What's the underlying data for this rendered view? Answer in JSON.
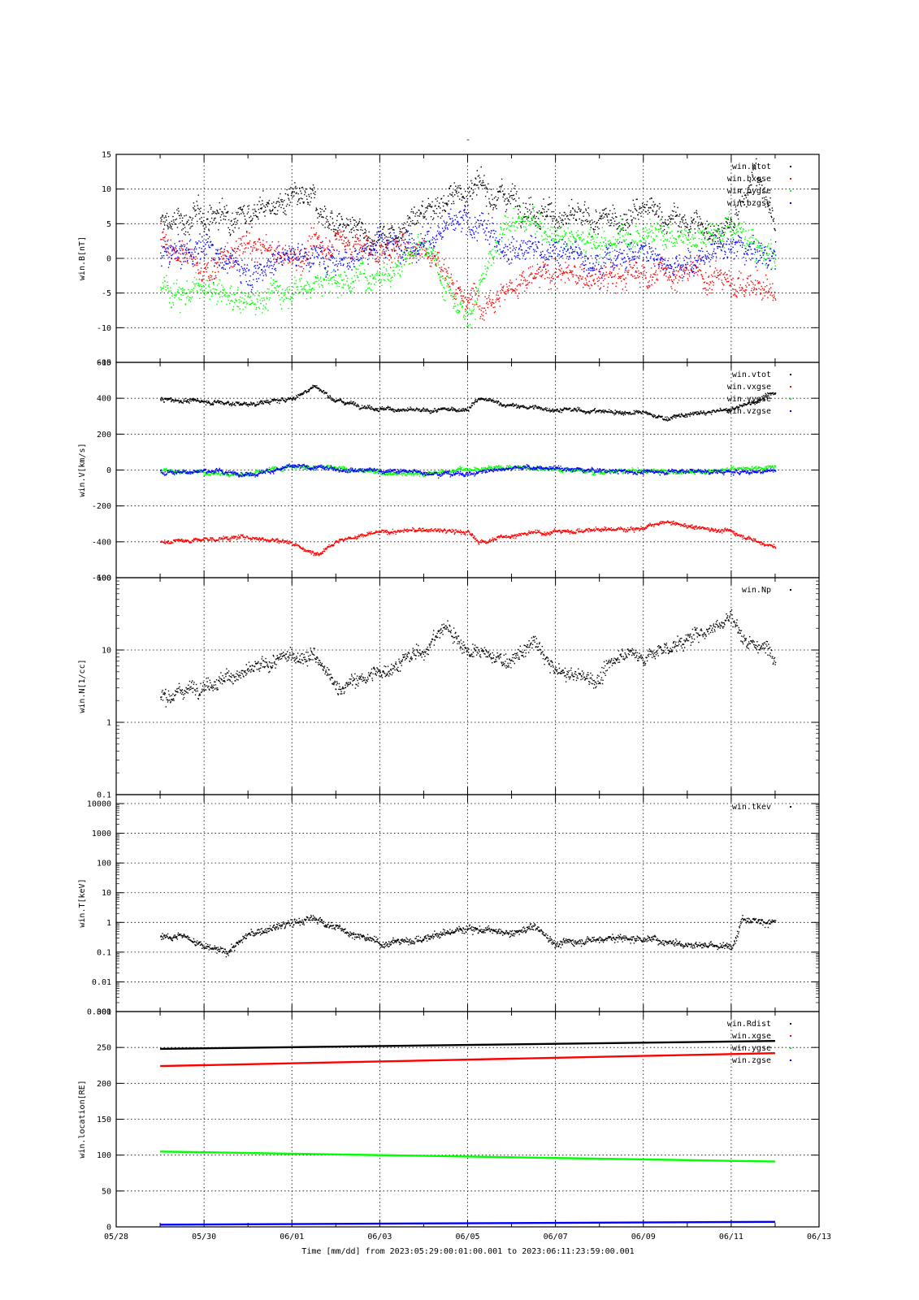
{
  "page_title": "-",
  "xaxis": {
    "xlabel": "Time [mm/dd]  from 2023:05:29:00:01:00.001  to  2023:06:11:23:59:00.001",
    "range": [
      "2023-05-28",
      "2023-06-13"
    ],
    "tick_labels": [
      "05/28",
      "05/30",
      "06/01",
      "06/03",
      "06/05",
      "06/07",
      "06/09",
      "06/11",
      "06/13"
    ],
    "data_start": "2023-05-29T00:01:00",
    "data_end": "2023-06-11T23:59:00"
  },
  "chart_data": [
    {
      "type": "scatter",
      "ylabel": "win.B[nT]",
      "ylim": [
        -15,
        15
      ],
      "yscale": "linear",
      "ytick_labels": [
        "-15",
        "-10",
        "-5",
        "0",
        "5",
        "10",
        "15"
      ],
      "grid": true,
      "legend": "top-right",
      "series": [
        {
          "name": "win.btot",
          "color": "#000000",
          "dates": [
            "05/29",
            "05/30",
            "05/31",
            "06/01",
            "06/01 12h",
            "06/02",
            "06/03",
            "06/04",
            "06/05",
            "06/06",
            "06/07",
            "06/08",
            "06/09",
            "06/10",
            "06/11",
            "06/11 12h",
            "06/12"
          ],
          "values": [
            5,
            6,
            7,
            8,
            8,
            5,
            3,
            7,
            10,
            9,
            6,
            5,
            7,
            5,
            4,
            13,
            5
          ]
        },
        {
          "name": "win.bxgse",
          "color": "#ff0000",
          "dates": [
            "05/29",
            "05/30",
            "05/31",
            "06/01",
            "06/02",
            "06/03",
            "06/04",
            "06/05",
            "06/06",
            "06/07",
            "06/08",
            "06/09",
            "06/10",
            "06/11",
            "06/12"
          ],
          "values": [
            3,
            -2,
            2,
            0,
            3,
            1,
            2,
            -6,
            -4,
            -2,
            -3,
            -2,
            -2,
            -3,
            -5
          ]
        },
        {
          "name": "win.bygse",
          "color": "#00ff00",
          "dates": [
            "05/29",
            "05/30",
            "05/31",
            "06/01",
            "06/02",
            "06/03",
            "06/04",
            "06/05",
            "06/06",
            "06/07",
            "06/08",
            "06/09",
            "06/10",
            "06/11",
            "06/12"
          ],
          "values": [
            -4,
            -5,
            -6,
            -4,
            -3,
            -2,
            2,
            -8,
            6,
            4,
            2,
            4,
            3,
            5,
            0
          ]
        },
        {
          "name": "win.bzgse",
          "color": "#0000ff",
          "dates": [
            "05/29",
            "05/30",
            "05/31",
            "06/01",
            "06/02",
            "06/03",
            "06/04",
            "06/05",
            "06/06",
            "06/07",
            "06/08",
            "06/09",
            "06/10",
            "06/11",
            "06/12"
          ],
          "values": [
            0,
            2,
            -2,
            1,
            0,
            2,
            3,
            5,
            2,
            1,
            0,
            1,
            -1,
            2,
            0
          ]
        }
      ]
    },
    {
      "type": "scatter",
      "ylabel": "win.V[km/s]",
      "ylim": [
        -600,
        600
      ],
      "yscale": "linear",
      "ytick_labels": [
        "-600",
        "-400",
        "-200",
        "0",
        "200",
        "400",
        "600"
      ],
      "grid": true,
      "legend": "top-right",
      "series": [
        {
          "name": "win.vtot",
          "color": "#000000",
          "dates": [
            "05/29",
            "05/30",
            "05/31",
            "06/01",
            "06/01 12h",
            "06/02",
            "06/03",
            "06/04",
            "06/05",
            "06/05 06h",
            "06/06",
            "06/07",
            "06/08",
            "06/09",
            "06/09 12h",
            "06/10",
            "06/11",
            "06/12"
          ],
          "values": [
            395,
            385,
            370,
            400,
            470,
            390,
            345,
            330,
            345,
            400,
            360,
            340,
            330,
            320,
            290,
            310,
            340,
            430
          ]
        },
        {
          "name": "win.vxgse",
          "color": "#ff0000",
          "dates": [
            "05/29",
            "05/30",
            "05/31",
            "06/01",
            "06/01 12h",
            "06/02",
            "06/03",
            "06/04",
            "06/05",
            "06/05 06h",
            "06/06",
            "06/07",
            "06/08",
            "06/09",
            "06/09 12h",
            "06/10",
            "06/11",
            "06/12"
          ],
          "values": [
            -395,
            -385,
            -370,
            -400,
            -470,
            -390,
            -345,
            -330,
            -345,
            -400,
            -360,
            -340,
            -330,
            -320,
            -290,
            -310,
            -340,
            -430
          ]
        },
        {
          "name": "win.vygse",
          "color": "#00ff00",
          "dates": [
            "05/29",
            "05/30",
            "05/31",
            "06/01",
            "06/02",
            "06/03",
            "06/04",
            "06/05",
            "06/06",
            "06/07",
            "06/08",
            "06/09",
            "06/10",
            "06/11",
            "06/12"
          ],
          "values": [
            0,
            -10,
            -20,
            30,
            10,
            -10,
            -20,
            10,
            20,
            10,
            -10,
            0,
            -10,
            10,
            20
          ]
        },
        {
          "name": "win.vzgse",
          "color": "#0000ff",
          "dates": [
            "05/29",
            "05/30",
            "05/31",
            "06/01",
            "06/02",
            "06/03",
            "06/04",
            "06/05",
            "06/06",
            "06/07",
            "06/08",
            "06/09",
            "06/10",
            "06/11",
            "06/12"
          ],
          "values": [
            -10,
            0,
            -20,
            20,
            10,
            0,
            -10,
            -20,
            20,
            10,
            0,
            -10,
            0,
            -10,
            0
          ]
        }
      ]
    },
    {
      "type": "scatter",
      "ylabel": "win.N[1/cc]",
      "ylim": [
        0.1,
        100
      ],
      "yscale": "log",
      "ytick_labels": [
        "0.1",
        "1",
        "10",
        "100"
      ],
      "grid": true,
      "legend": "top-right",
      "series": [
        {
          "name": "win.Np",
          "color": "#000000",
          "dates": [
            "05/29",
            "05/30",
            "05/31",
            "06/01",
            "06/01 12h",
            "06/02",
            "06/03",
            "06/04",
            "06/04 12h",
            "06/05",
            "06/06",
            "06/06 12h",
            "06/07",
            "06/08",
            "06/08 12h",
            "06/09",
            "06/10",
            "06/11",
            "06/11 06h",
            "06/12"
          ],
          "values": [
            2.2,
            3.5,
            5,
            8.5,
            8.5,
            3,
            5,
            10,
            22,
            10,
            7,
            13,
            5,
            4,
            10,
            8,
            14,
            30,
            15,
            9
          ]
        }
      ]
    },
    {
      "type": "scatter",
      "ylabel": "win.T[keV]",
      "ylim": [
        0.001,
        20000
      ],
      "yscale": "log",
      "ytick_labels": [
        "0.001",
        "0.01",
        "0.1",
        "1",
        "10",
        "100",
        "1000",
        "10000"
      ],
      "grid": true,
      "legend": "top-right",
      "series": [
        {
          "name": "win.tkev",
          "color": "#000000",
          "dates": [
            "05/29",
            "05/29 12h",
            "05/30",
            "05/30 12h",
            "05/31",
            "06/01",
            "06/01 12h",
            "06/02",
            "06/03",
            "06/04",
            "06/05",
            "06/06",
            "06/06 12h",
            "06/07",
            "06/08",
            "06/09",
            "06/10",
            "06/11",
            "06/11 06h",
            "06/12"
          ],
          "values": [
            0.35,
            0.4,
            0.15,
            0.1,
            0.4,
            1,
            1.4,
            0.7,
            0.2,
            0.3,
            0.7,
            0.4,
            0.8,
            0.2,
            0.3,
            0.3,
            0.2,
            0.15,
            1.5,
            1
          ]
        }
      ]
    },
    {
      "type": "line",
      "ylabel": "win.location[RE]",
      "ylim": [
        0,
        300
      ],
      "yscale": "linear",
      "ytick_labels": [
        "0",
        "50",
        "100",
        "150",
        "200",
        "250",
        "300"
      ],
      "grid": true,
      "legend": "top-right",
      "series": [
        {
          "name": "win.Rdist",
          "color": "#000000",
          "dates": [
            "05/29",
            "06/12"
          ],
          "values": [
            248,
            259
          ]
        },
        {
          "name": "win.xgse",
          "color": "#ff0000",
          "dates": [
            "05/29",
            "06/12"
          ],
          "values": [
            224,
            242
          ]
        },
        {
          "name": "win.ygse",
          "color": "#00ff00",
          "dates": [
            "05/29",
            "06/12"
          ],
          "values": [
            105,
            91
          ]
        },
        {
          "name": "win.zgse",
          "color": "#0000ff",
          "dates": [
            "05/29",
            "06/12"
          ],
          "values": [
            3,
            7
          ]
        }
      ]
    }
  ]
}
